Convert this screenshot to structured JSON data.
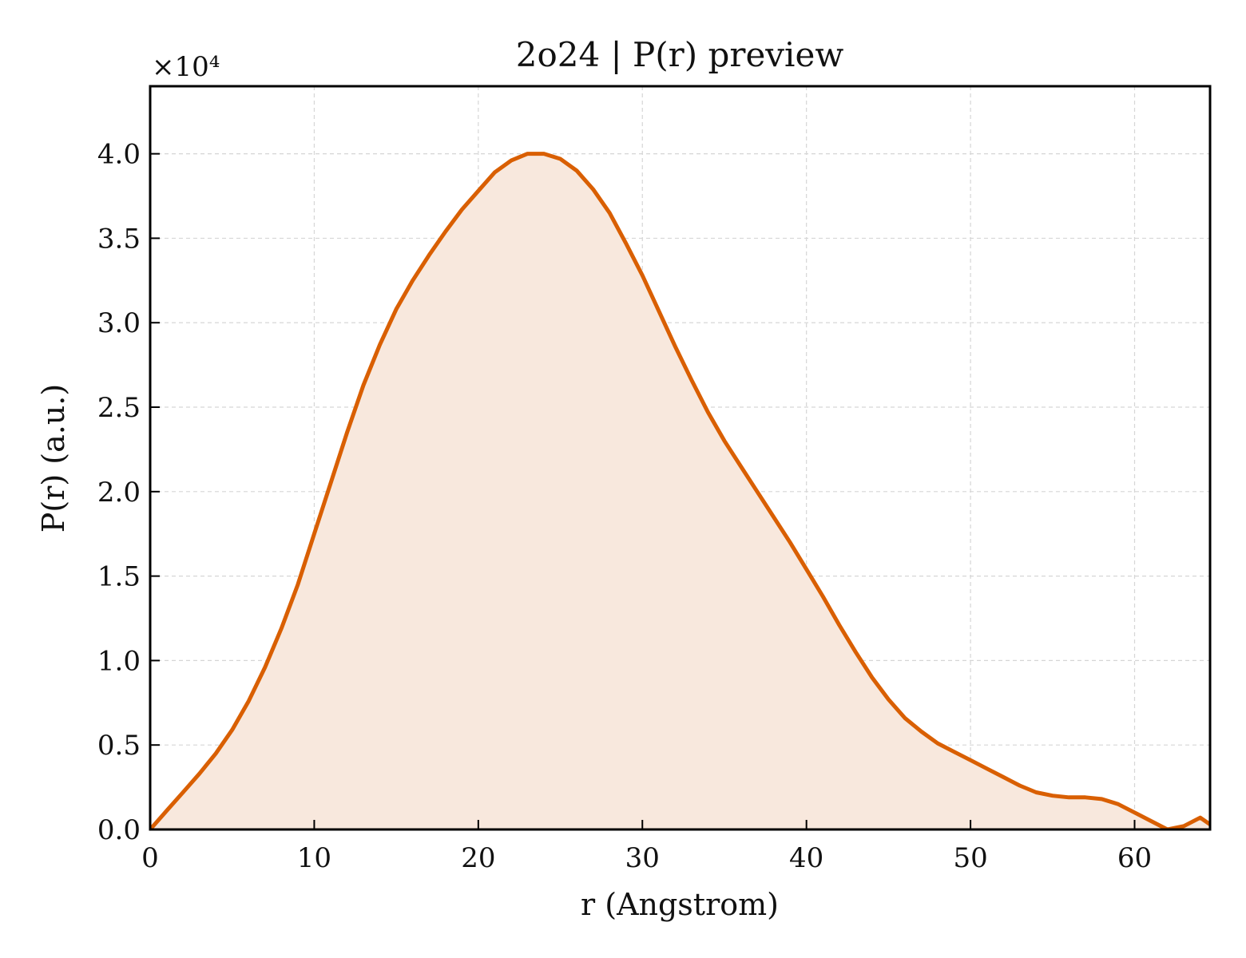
{
  "chart_data": {
    "type": "area",
    "title": "2o24 | P(r) preview",
    "xlabel": "r (Angstrom)",
    "ylabel": "P(r) (a.u.)",
    "y_scale_label": "×10⁴",
    "y_scale_factor": 10000,
    "xlim": [
      0,
      64.6
    ],
    "ylim": [
      0,
      44000
    ],
    "x_ticks": [
      0,
      10,
      20,
      30,
      40,
      50,
      60
    ],
    "x_tick_labels": [
      "0",
      "10",
      "20",
      "30",
      "40",
      "50",
      "60"
    ],
    "y_ticks": [
      0,
      5000,
      10000,
      15000,
      20000,
      25000,
      30000,
      35000,
      40000
    ],
    "y_tick_labels": [
      "0.0",
      "0.5",
      "1.0",
      "1.5",
      "2.0",
      "2.5",
      "3.0",
      "3.5",
      "4.0"
    ],
    "grid": true,
    "line_color": "#d95f02",
    "fill_color": "#f8e8dd",
    "series": [
      {
        "x": [
          0,
          1,
          2,
          3,
          4,
          5,
          6,
          7,
          8,
          9,
          10,
          11,
          12,
          13,
          14,
          15,
          16,
          17,
          18,
          19,
          20,
          21,
          22,
          23,
          24,
          25,
          26,
          27,
          28,
          29,
          30,
          31,
          32,
          33,
          34,
          35,
          36,
          37,
          38,
          39,
          40,
          41,
          42,
          43,
          44,
          45,
          46,
          47,
          48,
          49,
          50,
          51,
          52,
          53,
          54,
          55,
          56,
          57,
          58,
          59,
          60,
          61,
          62,
          63,
          64,
          64.6
        ],
        "values": [
          0,
          1100,
          2200,
          3300,
          4500,
          5900,
          7600,
          9600,
          11900,
          14500,
          17500,
          20500,
          23500,
          26300,
          28700,
          30800,
          32500,
          34000,
          35400,
          36700,
          37800,
          38900,
          39600,
          40000,
          40000,
          39700,
          39000,
          37900,
          36500,
          34700,
          32800,
          30700,
          28600,
          26600,
          24700,
          23000,
          21500,
          20000,
          18500,
          17000,
          15400,
          13800,
          12100,
          10500,
          9000,
          7700,
          6600,
          5800,
          5100,
          4600,
          4100,
          3600,
          3100,
          2600,
          2200,
          2000,
          1900,
          1900,
          1800,
          1500,
          1000,
          500,
          0,
          200,
          700,
          300
        ]
      }
    ]
  }
}
